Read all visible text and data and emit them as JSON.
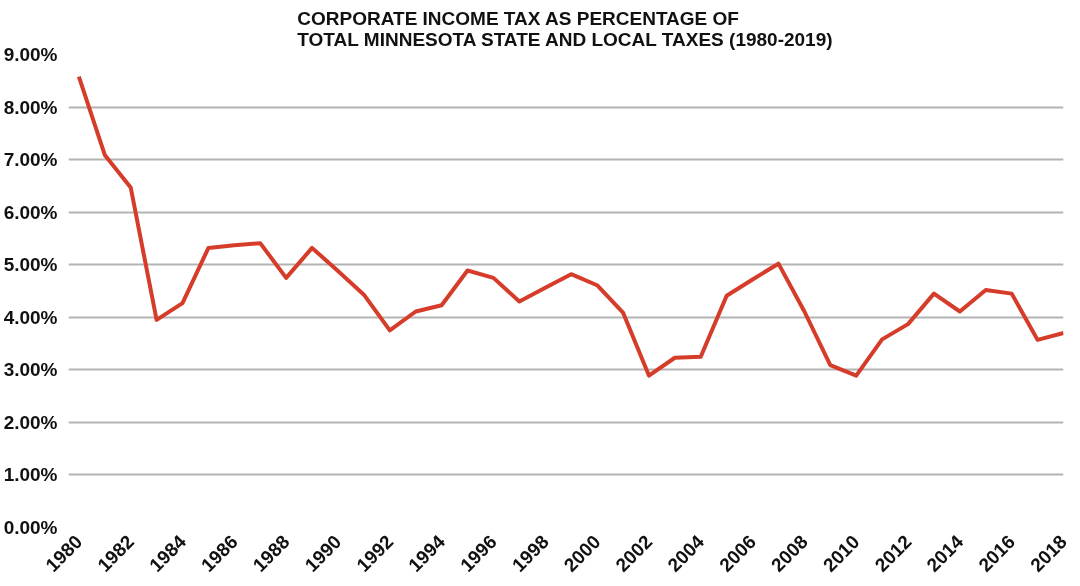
{
  "chart_data": {
    "type": "line",
    "title": "CORPORATE INCOME TAX AS PERCENTAGE OF\nTOTAL MINNESOTA STATE AND LOCAL TAXES (1980-2019)",
    "x": [
      1980,
      1981,
      1982,
      1983,
      1984,
      1985,
      1986,
      1987,
      1988,
      1989,
      1990,
      1991,
      1992,
      1993,
      1994,
      1995,
      1996,
      1997,
      1998,
      1999,
      2000,
      2001,
      2002,
      2003,
      2004,
      2005,
      2006,
      2007,
      2008,
      2009,
      2010,
      2011,
      2012,
      2013,
      2014,
      2015,
      2016,
      2017,
      2018
    ],
    "series": [
      {
        "color": "#d63c2a",
        "values": [
          8.58,
          7.09,
          6.47,
          3.95,
          4.27,
          5.32,
          5.37,
          5.41,
          4.75,
          5.32,
          4.88,
          4.43,
          3.75,
          4.11,
          4.23,
          4.89,
          4.75,
          4.3,
          4.56,
          4.82,
          4.61,
          4.09,
          2.89,
          3.23,
          3.25,
          4.41,
          4.72,
          5.02,
          4.11,
          3.09,
          2.89,
          3.58,
          3.87,
          4.45,
          4.11,
          4.52,
          4.45,
          3.57,
          3.7
        ]
      }
    ],
    "xlim": [
      1979.6,
      2018
    ],
    "xticks": [
      1980,
      1982,
      1984,
      1986,
      1988,
      1990,
      1992,
      1994,
      1996,
      1998,
      2000,
      2002,
      2004,
      2006,
      2008,
      2010,
      2012,
      2014,
      2016,
      2018
    ],
    "ylim": [
      0,
      9
    ],
    "yticks": [
      {
        "value": 0,
        "label": "0.00%"
      },
      {
        "value": 1,
        "label": "1.00%"
      },
      {
        "value": 2,
        "label": "2.00%"
      },
      {
        "value": 3,
        "label": "3.00%"
      },
      {
        "value": 4,
        "label": "4.00%"
      },
      {
        "value": 5,
        "label": "5.00%"
      },
      {
        "value": 6,
        "label": "6.00%"
      },
      {
        "value": 7,
        "label": "7.00%"
      },
      {
        "value": 8,
        "label": "8.00%"
      },
      {
        "value": 9,
        "label": "9.00%"
      }
    ],
    "grid": "y",
    "marker": "none",
    "line_style": "solid"
  }
}
